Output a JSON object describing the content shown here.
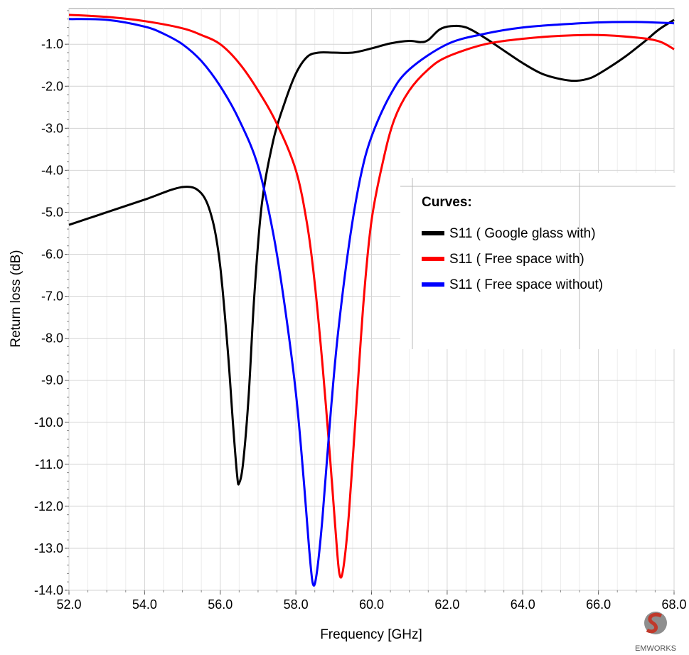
{
  "chart_data": {
    "type": "line",
    "xlabel": "Frequency [GHz]",
    "ylabel": "Return  loss (dB)",
    "xlim": [
      52.0,
      68.0
    ],
    "ylim": [
      -14.0,
      -0.15
    ],
    "x_ticks": [
      "52.0",
      "54.0",
      "56.0",
      "58.0",
      "60.0",
      "62.0",
      "64.0",
      "66.0",
      "68.0"
    ],
    "y_ticks": [
      "-1.0",
      "-2.0",
      "-3.0",
      "-4.0",
      "-5.0",
      "-6.0",
      "-7.0",
      "-8.0",
      "-9.0",
      "-10.0",
      "-11.0",
      "-12.0",
      "-13.0",
      "-14.0"
    ],
    "grid": true,
    "legend": {
      "title": "Curves:",
      "position": "right"
    },
    "series": [
      {
        "name": "S11 ( Google glass with)",
        "color": "#000000",
        "points": [
          [
            52.0,
            -5.3
          ],
          [
            53.0,
            -5.0
          ],
          [
            54.0,
            -4.7
          ],
          [
            55.0,
            -4.4
          ],
          [
            55.5,
            -4.55
          ],
          [
            55.8,
            -5.2
          ],
          [
            56.0,
            -6.3
          ],
          [
            56.2,
            -8.3
          ],
          [
            56.35,
            -10.2
          ],
          [
            56.45,
            -11.3
          ],
          [
            56.5,
            -11.45
          ],
          [
            56.6,
            -11.0
          ],
          [
            56.75,
            -9.4
          ],
          [
            56.9,
            -7.0
          ],
          [
            57.1,
            -4.8
          ],
          [
            57.4,
            -3.3
          ],
          [
            57.7,
            -2.4
          ],
          [
            58.0,
            -1.7
          ],
          [
            58.3,
            -1.3
          ],
          [
            58.6,
            -1.2
          ],
          [
            59.0,
            -1.2
          ],
          [
            59.5,
            -1.2
          ],
          [
            60.0,
            -1.1
          ],
          [
            60.5,
            -0.98
          ],
          [
            61.0,
            -0.92
          ],
          [
            61.3,
            -0.95
          ],
          [
            61.5,
            -0.9
          ],
          [
            61.8,
            -0.65
          ],
          [
            62.1,
            -0.57
          ],
          [
            62.5,
            -0.6
          ],
          [
            63.0,
            -0.85
          ],
          [
            63.5,
            -1.15
          ],
          [
            64.0,
            -1.45
          ],
          [
            64.5,
            -1.7
          ],
          [
            65.0,
            -1.83
          ],
          [
            65.4,
            -1.87
          ],
          [
            65.8,
            -1.8
          ],
          [
            66.2,
            -1.6
          ],
          [
            66.7,
            -1.3
          ],
          [
            67.2,
            -0.95
          ],
          [
            67.6,
            -0.65
          ],
          [
            68.0,
            -0.42
          ]
        ]
      },
      {
        "name": "S11 ( Free space with)",
        "color": "#ff0000",
        "points": [
          [
            52.0,
            -0.3
          ],
          [
            53.0,
            -0.35
          ],
          [
            54.0,
            -0.45
          ],
          [
            55.0,
            -0.62
          ],
          [
            55.5,
            -0.78
          ],
          [
            56.0,
            -1.0
          ],
          [
            56.5,
            -1.45
          ],
          [
            57.0,
            -2.1
          ],
          [
            57.5,
            -2.9
          ],
          [
            58.0,
            -4.0
          ],
          [
            58.3,
            -5.3
          ],
          [
            58.5,
            -6.7
          ],
          [
            58.7,
            -8.6
          ],
          [
            58.9,
            -10.8
          ],
          [
            59.05,
            -12.6
          ],
          [
            59.15,
            -13.6
          ],
          [
            59.25,
            -13.5
          ],
          [
            59.4,
            -12.2
          ],
          [
            59.6,
            -9.6
          ],
          [
            59.8,
            -7.0
          ],
          [
            60.0,
            -5.2
          ],
          [
            60.3,
            -3.8
          ],
          [
            60.6,
            -2.8
          ],
          [
            61.0,
            -2.1
          ],
          [
            61.5,
            -1.6
          ],
          [
            62.0,
            -1.3
          ],
          [
            63.0,
            -1.0
          ],
          [
            64.0,
            -0.87
          ],
          [
            65.0,
            -0.8
          ],
          [
            66.0,
            -0.78
          ],
          [
            67.0,
            -0.84
          ],
          [
            67.6,
            -0.93
          ],
          [
            68.0,
            -1.12
          ]
        ]
      },
      {
        "name": "S11 ( Free space without)",
        "color": "#0000ff",
        "points": [
          [
            52.0,
            -0.4
          ],
          [
            53.0,
            -0.42
          ],
          [
            54.0,
            -0.58
          ],
          [
            54.5,
            -0.75
          ],
          [
            55.0,
            -1.0
          ],
          [
            55.5,
            -1.4
          ],
          [
            56.0,
            -2.0
          ],
          [
            56.5,
            -2.8
          ],
          [
            57.0,
            -3.9
          ],
          [
            57.4,
            -5.5
          ],
          [
            57.7,
            -7.2
          ],
          [
            58.0,
            -9.3
          ],
          [
            58.2,
            -11.3
          ],
          [
            58.35,
            -13.0
          ],
          [
            58.45,
            -13.85
          ],
          [
            58.55,
            -13.6
          ],
          [
            58.7,
            -12.3
          ],
          [
            58.9,
            -10.0
          ],
          [
            59.1,
            -8.0
          ],
          [
            59.4,
            -5.8
          ],
          [
            59.7,
            -4.2
          ],
          [
            60.0,
            -3.2
          ],
          [
            60.5,
            -2.2
          ],
          [
            61.0,
            -1.6
          ],
          [
            62.0,
            -1.0
          ],
          [
            63.0,
            -0.75
          ],
          [
            64.0,
            -0.6
          ],
          [
            65.0,
            -0.53
          ],
          [
            66.0,
            -0.48
          ],
          [
            67.0,
            -0.47
          ],
          [
            68.0,
            -0.5
          ]
        ]
      }
    ]
  },
  "logo": {
    "name": "EMWORKS",
    "color": "#7a7a7a"
  }
}
